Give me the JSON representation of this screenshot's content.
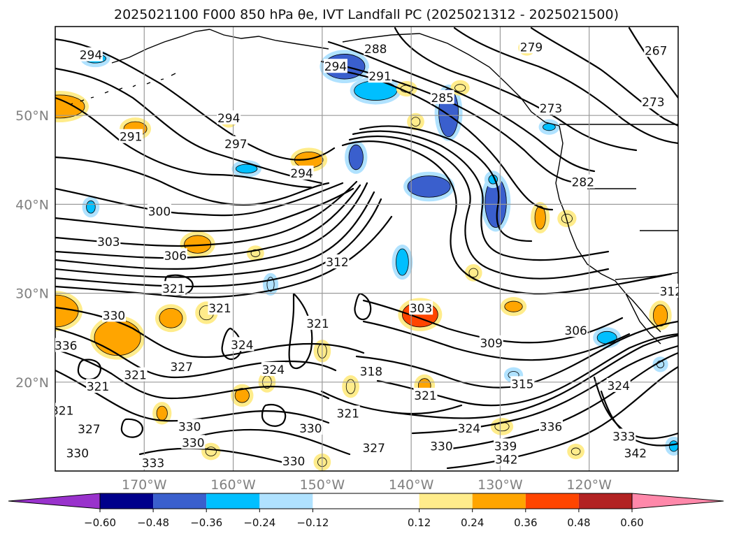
{
  "chart_data": {
    "type": "heatmap",
    "title": "2025021100 F000 850 hPa θe, IVT Landfall PC (2025021312 - 2025021500)",
    "x_ticks": [
      "170°W",
      "160°W",
      "150°W",
      "140°W",
      "130°W",
      "120°W"
    ],
    "y_ticks": [
      "50°N",
      "40°N",
      "30°N",
      "20°N"
    ],
    "xlim_lon": [
      -180,
      -110
    ],
    "ylim_lat": [
      10,
      60
    ],
    "grid": true,
    "colorbar": {
      "orientation": "horizontal",
      "extend": "both",
      "levels": [
        -0.72,
        -0.6,
        -0.48,
        -0.36,
        -0.24,
        -0.12,
        0.12,
        0.24,
        0.36,
        0.48,
        0.6,
        0.72
      ],
      "tick_labels": [
        "−0.60",
        "−0.48",
        "−0.36",
        "−0.24",
        "−0.12",
        "0.12",
        "0.24",
        "0.36",
        "0.48",
        "0.60"
      ],
      "colors": [
        "#9932cc",
        "#00008b",
        "#3a5fcd",
        "#00bfff",
        "#b0e2ff",
        "#ffffff",
        "#ffec8b",
        "#ffa500",
        "#ff4500",
        "#b22222",
        "#ff88aa"
      ]
    },
    "theta_e_contour_labels": [
      {
        "text": "294",
        "lon": -176.0,
        "lat": 56.8
      },
      {
        "text": "294",
        "lon": -148.5,
        "lat": 55.5
      },
      {
        "text": "288",
        "lon": -144.0,
        "lat": 57.5
      },
      {
        "text": "279",
        "lon": -126.5,
        "lat": 57.7
      },
      {
        "text": "267",
        "lon": -112.5,
        "lat": 57.3
      },
      {
        "text": "291",
        "lon": -143.5,
        "lat": 54.4
      },
      {
        "text": "285",
        "lon": -136.5,
        "lat": 52.0
      },
      {
        "text": "273",
        "lon": -124.3,
        "lat": 50.8
      },
      {
        "text": "273",
        "lon": -112.8,
        "lat": 51.5
      },
      {
        "text": "294",
        "lon": -160.5,
        "lat": 49.7
      },
      {
        "text": "291",
        "lon": -171.5,
        "lat": 47.6
      },
      {
        "text": "297",
        "lon": -159.7,
        "lat": 46.8
      },
      {
        "text": "294",
        "lon": -152.3,
        "lat": 43.5
      },
      {
        "text": "282",
        "lon": -120.7,
        "lat": 42.5
      },
      {
        "text": "300",
        "lon": -168.3,
        "lat": 39.2
      },
      {
        "text": "303",
        "lon": -174.0,
        "lat": 35.8
      },
      {
        "text": "306",
        "lon": -166.5,
        "lat": 34.2
      },
      {
        "text": "312",
        "lon": -148.3,
        "lat": 33.5
      },
      {
        "text": "321",
        "lon": -166.7,
        "lat": 30.5
      },
      {
        "text": "312",
        "lon": -110.8,
        "lat": 30.2
      },
      {
        "text": "303",
        "lon": -138.9,
        "lat": 28.3
      },
      {
        "text": "321",
        "lon": -161.5,
        "lat": 28.3
      },
      {
        "text": "330",
        "lon": -173.4,
        "lat": 27.5
      },
      {
        "text": "321",
        "lon": -150.5,
        "lat": 26.6
      },
      {
        "text": "306",
        "lon": -121.5,
        "lat": 25.8
      },
      {
        "text": "309",
        "lon": -131.0,
        "lat": 24.4
      },
      {
        "text": "324",
        "lon": -159.0,
        "lat": 24.2
      },
      {
        "text": "336",
        "lon": -178.8,
        "lat": 24.1
      },
      {
        "text": "327",
        "lon": -165.8,
        "lat": 21.7
      },
      {
        "text": "321",
        "lon": -171.0,
        "lat": 20.8
      },
      {
        "text": "324",
        "lon": -155.5,
        "lat": 21.4
      },
      {
        "text": "318",
        "lon": -144.5,
        "lat": 21.2
      },
      {
        "text": "315",
        "lon": -127.5,
        "lat": 19.8
      },
      {
        "text": "324",
        "lon": -116.7,
        "lat": 19.6
      },
      {
        "text": "321",
        "lon": -175.2,
        "lat": 19.5
      },
      {
        "text": "321",
        "lon": -138.4,
        "lat": 18.5
      },
      {
        "text": "321",
        "lon": -147.1,
        "lat": 16.5
      },
      {
        "text": "321",
        "lon": -179.2,
        "lat": 16.8
      },
      {
        "text": "327",
        "lon": -176.2,
        "lat": 14.7
      },
      {
        "text": "330",
        "lon": -164.9,
        "lat": 15.0
      },
      {
        "text": "336",
        "lon": -124.3,
        "lat": 15.0
      },
      {
        "text": "324",
        "lon": -133.5,
        "lat": 14.8
      },
      {
        "text": "330",
        "lon": -164.5,
        "lat": 13.2
      },
      {
        "text": "330",
        "lon": -151.3,
        "lat": 14.8
      },
      {
        "text": "327",
        "lon": -144.2,
        "lat": 12.6
      },
      {
        "text": "339",
        "lon": -129.4,
        "lat": 12.8
      },
      {
        "text": "330",
        "lon": -136.6,
        "lat": 12.8
      },
      {
        "text": "333",
        "lon": -116.1,
        "lat": 13.9
      },
      {
        "text": "330",
        "lon": -177.5,
        "lat": 12.0
      },
      {
        "text": "342",
        "lon": -129.3,
        "lat": 11.3
      },
      {
        "text": "342",
        "lon": -114.8,
        "lat": 12.0
      },
      {
        "text": "333",
        "lon": -169.0,
        "lat": 10.9
      },
      {
        "text": "330",
        "lon": -153.2,
        "lat": 11.1
      }
    ],
    "ivt_pc_anomaly_patches": [
      {
        "lon": -175.5,
        "lat": 56.4,
        "rlon": 1.2,
        "rlat": 0.5,
        "level": -0.36
      },
      {
        "lon": -147.5,
        "lat": 55.5,
        "rlon": 2.3,
        "rlat": 1.4,
        "level": -0.48
      },
      {
        "lon": -144.0,
        "lat": 52.8,
        "rlon": 2.4,
        "rlat": 1.1,
        "level": -0.36
      },
      {
        "lon": -140.5,
        "lat": 53.0,
        "rlon": 0.7,
        "rlat": 0.4,
        "level": 0.24
      },
      {
        "lon": -135.8,
        "lat": 50.3,
        "rlon": 1.1,
        "rlat": 2.7,
        "level": -0.48
      },
      {
        "lon": -134.5,
        "lat": 53.1,
        "rlon": 0.6,
        "rlat": 0.4,
        "level": 0.24
      },
      {
        "lon": -127.0,
        "lat": 57.6,
        "rlon": 0.5,
        "rlat": 0.4,
        "level": 0.24
      },
      {
        "lon": -124.5,
        "lat": 48.7,
        "rlon": 0.7,
        "rlat": 0.4,
        "level": -0.36
      },
      {
        "lon": -179.5,
        "lat": 51.0,
        "rlon": 2.8,
        "rlat": 1.3,
        "level": 0.36
      },
      {
        "lon": -171.0,
        "lat": 48.5,
        "rlon": 1.3,
        "rlat": 0.8,
        "level": 0.36
      },
      {
        "lon": -160.5,
        "lat": 49.5,
        "rlon": 0.5,
        "rlat": 0.4,
        "level": 0.24
      },
      {
        "lon": -151.5,
        "lat": 45.0,
        "rlon": 1.6,
        "rlat": 0.9,
        "level": 0.36
      },
      {
        "lon": -146.2,
        "lat": 45.3,
        "rlon": 0.8,
        "rlat": 1.4,
        "level": -0.48
      },
      {
        "lon": -139.5,
        "lat": 49.3,
        "rlon": 0.5,
        "rlat": 0.5,
        "level": 0.24
      },
      {
        "lon": -138.0,
        "lat": 42.0,
        "rlon": 2.4,
        "rlat": 1.2,
        "level": -0.48
      },
      {
        "lon": -130.5,
        "lat": 40.2,
        "rlon": 1.2,
        "rlat": 2.8,
        "level": -0.48
      },
      {
        "lon": -130.8,
        "lat": 42.8,
        "rlon": 0.5,
        "rlat": 0.5,
        "level": -0.36
      },
      {
        "lon": -125.5,
        "lat": 38.5,
        "rlon": 0.6,
        "rlat": 1.3,
        "level": 0.36
      },
      {
        "lon": -122.5,
        "lat": 38.4,
        "rlon": 0.6,
        "rlat": 0.5,
        "level": 0.24
      },
      {
        "lon": -158.5,
        "lat": 44.0,
        "rlon": 1.2,
        "rlat": 0.5,
        "level": -0.36
      },
      {
        "lon": -164.0,
        "lat": 35.5,
        "rlon": 1.5,
        "rlat": 1.0,
        "level": 0.36
      },
      {
        "lon": -157.5,
        "lat": 34.5,
        "rlon": 0.5,
        "rlat": 0.4,
        "level": 0.24
      },
      {
        "lon": -176.0,
        "lat": 39.7,
        "rlon": 0.5,
        "rlat": 0.7,
        "level": -0.36
      },
      {
        "lon": -141.0,
        "lat": 33.5,
        "rlon": 0.7,
        "rlat": 1.5,
        "level": -0.36
      },
      {
        "lon": -133.0,
        "lat": 32.3,
        "rlon": 0.5,
        "rlat": 0.5,
        "level": 0.24
      },
      {
        "lon": -180.0,
        "lat": 28.0,
        "rlon": 2.6,
        "rlat": 1.8,
        "level": 0.36
      },
      {
        "lon": -173.0,
        "lat": 25.0,
        "rlon": 2.6,
        "rlat": 2.0,
        "level": 0.36
      },
      {
        "lon": -167.0,
        "lat": 27.2,
        "rlon": 1.3,
        "rlat": 1.1,
        "level": 0.36
      },
      {
        "lon": -163.0,
        "lat": 27.8,
        "rlon": 0.8,
        "rlat": 0.8,
        "level": 0.24
      },
      {
        "lon": -155.8,
        "lat": 31.0,
        "rlon": 0.4,
        "rlat": 0.8,
        "level": -0.24
      },
      {
        "lon": -139.0,
        "lat": 27.6,
        "rlon": 2.0,
        "rlat": 1.4,
        "level": 0.48
      },
      {
        "lon": -128.5,
        "lat": 28.5,
        "rlon": 1.0,
        "rlat": 0.6,
        "level": 0.36
      },
      {
        "lon": -150.0,
        "lat": 23.5,
        "rlon": 0.5,
        "rlat": 0.8,
        "level": 0.24
      },
      {
        "lon": -118.0,
        "lat": 25.0,
        "rlon": 1.1,
        "rlat": 0.7,
        "level": -0.36
      },
      {
        "lon": -112.0,
        "lat": 27.5,
        "rlon": 0.8,
        "rlat": 1.2,
        "level": 0.36
      },
      {
        "lon": -159.0,
        "lat": 18.5,
        "rlon": 0.8,
        "rlat": 0.8,
        "level": 0.36
      },
      {
        "lon": -156.2,
        "lat": 20.0,
        "rlon": 0.5,
        "rlat": 0.7,
        "level": 0.24
      },
      {
        "lon": -146.8,
        "lat": 19.5,
        "rlon": 0.5,
        "rlat": 0.8,
        "level": 0.24
      },
      {
        "lon": -138.5,
        "lat": 19.6,
        "rlon": 0.7,
        "rlat": 0.8,
        "level": 0.36
      },
      {
        "lon": -128.5,
        "lat": 20.8,
        "rlon": 0.6,
        "rlat": 0.4,
        "level": -0.24
      },
      {
        "lon": -168.0,
        "lat": 16.5,
        "rlon": 0.6,
        "rlat": 0.8,
        "level": 0.36
      },
      {
        "lon": -162.5,
        "lat": 12.2,
        "rlon": 0.6,
        "rlat": 0.5,
        "level": 0.24
      },
      {
        "lon": -150.0,
        "lat": 11.0,
        "rlon": 0.5,
        "rlat": 0.5,
        "level": 0.24
      },
      {
        "lon": -129.8,
        "lat": 15.0,
        "rlon": 0.8,
        "rlat": 0.5,
        "level": 0.24
      },
      {
        "lon": -121.5,
        "lat": 12.2,
        "rlon": 0.5,
        "rlat": 0.4,
        "level": 0.24
      },
      {
        "lon": -110.5,
        "lat": 12.8,
        "rlon": 0.5,
        "rlat": 0.6,
        "level": -0.36
      },
      {
        "lon": -112.0,
        "lat": 22.0,
        "rlon": 0.4,
        "rlat": 0.4,
        "level": -0.24
      }
    ]
  }
}
